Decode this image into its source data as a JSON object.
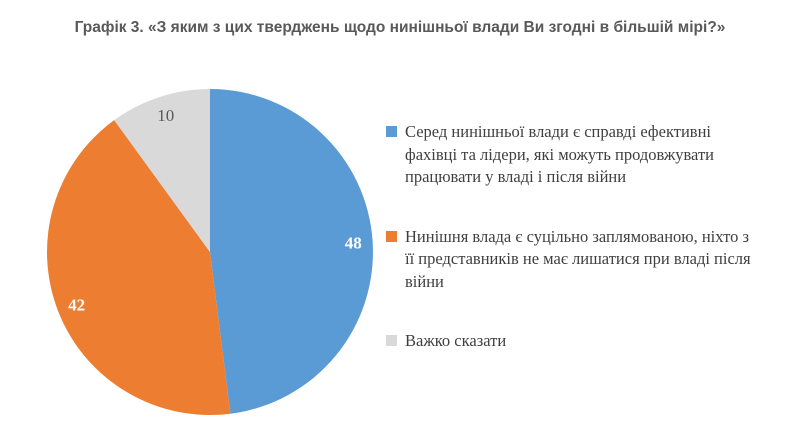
{
  "title": "Графік 3. «З яким з цих тверджень щодо нинішньої влади Ви згодні в більшій мірі?»",
  "colors": {
    "series_blue": "#5B9BD5",
    "series_orange": "#ED7D31",
    "series_gray": "#D9D9D9",
    "title_text": "#595959",
    "legend_text": "#3F3F3F",
    "background": "#FFFFFF"
  },
  "chart_data": {
    "type": "pie",
    "title": "Графік 3. «З яким з цих тверджень щодо нинішньої влади Ви згодні в більшій мірі?»",
    "start_angle_deg": 0,
    "direction": "clockwise",
    "legend_position": "right",
    "data_labels": "values-inside",
    "slices": [
      {
        "label": "Серед нинішньої влади є справді ефективні фахівці та лідери, які можуть продовжувати працювати у владі і після війни",
        "value": 48,
        "color": "#5B9BD5",
        "label_color": "#FFFFFF",
        "label_bold": true
      },
      {
        "label": "Нинішня влада є суцільно заплямованою, ніхто з її представників не має лишатися при владі після війни",
        "value": 42,
        "color": "#ED7D31",
        "label_color": "#FFFFFF",
        "label_bold": true
      },
      {
        "label": "Важко сказати",
        "value": 10,
        "color": "#D9D9D9",
        "label_color": "#595959",
        "label_bold": false
      }
    ]
  },
  "legend": {
    "items": [
      {
        "text": "Серед нинішньої влади є справді ефективні\nфахівці та лідери, які можуть продовжувати\nпрацювати у владі і після війни",
        "color": "#5B9BD5"
      },
      {
        "text": "Нинішня влада є суцільно заплямованою, ніхто з\nїї представників не має лишатися при владі після\nвійни",
        "color": "#ED7D31"
      },
      {
        "text": "Важко сказати",
        "color": "#D9D9D9"
      }
    ]
  }
}
